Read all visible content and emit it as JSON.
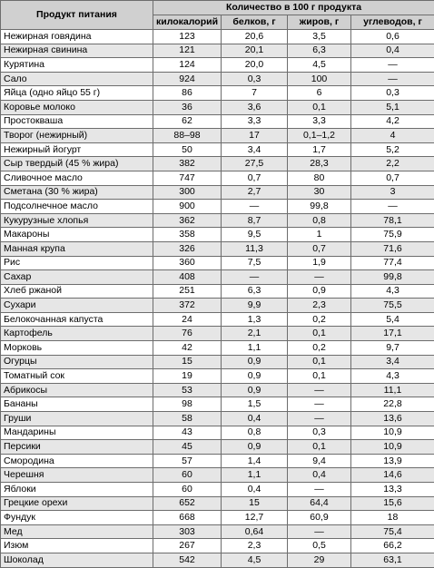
{
  "table": {
    "header": {
      "product": "Продукт питания",
      "group": "Количество в 100 г продукта",
      "columns": [
        "килокалорий",
        "белков, г",
        "жиров, г",
        "углеводов, г"
      ]
    },
    "rows": [
      [
        "Нежирная говядина",
        "123",
        "20,6",
        "3,5",
        "0,6"
      ],
      [
        "Нежирная свинина",
        "121",
        "20,1",
        "6,3",
        "0,4"
      ],
      [
        "Курятина",
        "124",
        "20,0",
        "4,5",
        "—"
      ],
      [
        "Сало",
        "924",
        "0,3",
        "100",
        "—"
      ],
      [
        "Яйца (одно яйцо 55 г)",
        "86",
        "7",
        "6",
        "0,3"
      ],
      [
        "Коровье молоко",
        "36",
        "3,6",
        "0,1",
        "5,1"
      ],
      [
        "Простокваша",
        "62",
        "3,3",
        "3,3",
        "4,2"
      ],
      [
        "Творог (нежирный)",
        "88–98",
        "17",
        "0,1–1,2",
        "4"
      ],
      [
        "Нежирный йогурт",
        "50",
        "3,4",
        "1,7",
        "5,2"
      ],
      [
        "Сыр твердый (45 % жира)",
        "382",
        "27,5",
        "28,3",
        "2,2"
      ],
      [
        "Сливочное масло",
        "747",
        "0,7",
        "80",
        "0,7"
      ],
      [
        "Сметана (30 % жира)",
        "300",
        "2,7",
        "30",
        "3"
      ],
      [
        "Подсолнечное масло",
        "900",
        "—",
        "99,8",
        "—"
      ],
      [
        "Кукурузные хлопья",
        "362",
        "8,7",
        "0,8",
        "78,1"
      ],
      [
        "Макароны",
        "358",
        "9,5",
        "1",
        "75,9"
      ],
      [
        "Манная крупа",
        "326",
        "11,3",
        "0,7",
        "71,6"
      ],
      [
        "Рис",
        "360",
        "7,5",
        "1,9",
        "77,4"
      ],
      [
        "Сахар",
        "408",
        "—",
        "—",
        "99,8"
      ],
      [
        "Хлеб ржаной",
        "251",
        "6,3",
        "0,9",
        "4,3"
      ],
      [
        "Сухари",
        "372",
        "9,9",
        "2,3",
        "75,5"
      ],
      [
        "Белокочанная капуста",
        "24",
        "1,3",
        "0,2",
        "5,4"
      ],
      [
        "Картофель",
        "76",
        "2,1",
        "0,1",
        "17,1"
      ],
      [
        "Морковь",
        "42",
        "1,1",
        "0,2",
        "9,7"
      ],
      [
        "Огурцы",
        "15",
        "0,9",
        "0,1",
        "3,4"
      ],
      [
        "Томатный сок",
        "19",
        "0,9",
        "0,1",
        "4,3"
      ],
      [
        "Абрикосы",
        "53",
        "0,9",
        "—",
        "11,1"
      ],
      [
        "Бананы",
        "98",
        "1,5",
        "—",
        "22,8"
      ],
      [
        "Груши",
        "58",
        "0,4",
        "—",
        "13,6"
      ],
      [
        "Мандарины",
        "43",
        "0,8",
        "0,3",
        "10,9"
      ],
      [
        "Персики",
        "45",
        "0,9",
        "0,1",
        "10,9"
      ],
      [
        "Смородина",
        "57",
        "1,4",
        "9,4",
        "13,9"
      ],
      [
        "Черешня",
        "60",
        "1,1",
        "0,4",
        "14,6"
      ],
      [
        "Яблоки",
        "60",
        "0,4",
        "—",
        "13,3"
      ],
      [
        "Грецкие орехи",
        "652",
        "15",
        "64,4",
        "15,6"
      ],
      [
        "Фундук",
        "668",
        "12,7",
        "60,9",
        "18"
      ],
      [
        "Мед",
        "303",
        "0,64",
        "—",
        "75,4"
      ],
      [
        "Изюм",
        "267",
        "2,3",
        "0,5",
        "66,2"
      ],
      [
        "Шоколад",
        "542",
        "4,5",
        "29",
        "63,1"
      ]
    ]
  }
}
